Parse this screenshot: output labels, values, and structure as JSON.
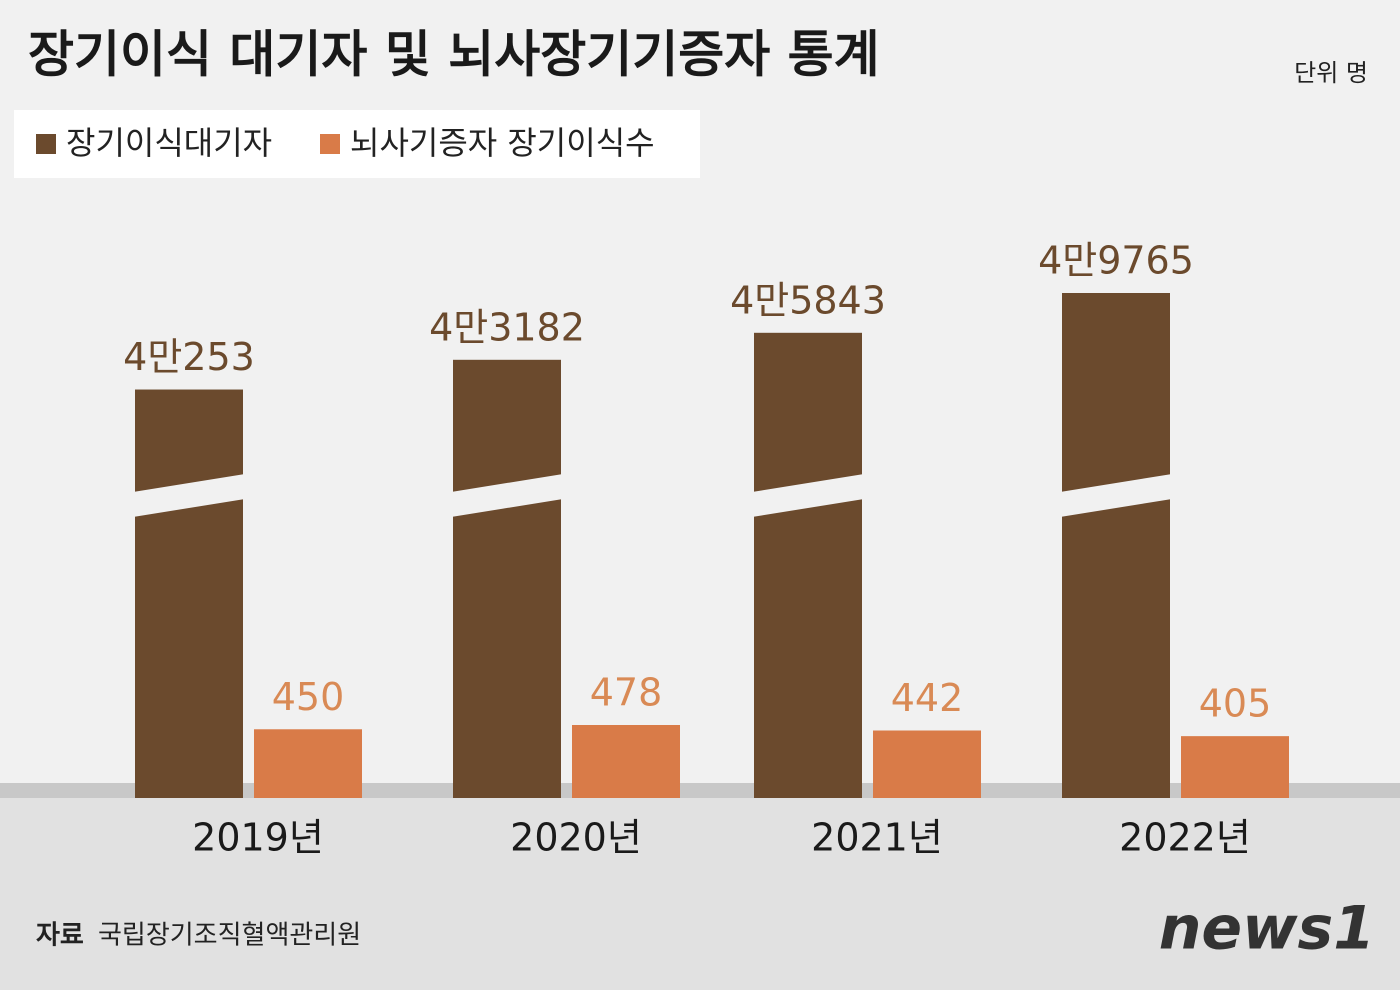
{
  "chart_data": {
    "type": "bar",
    "title": "장기이식 대기자 및 뇌사장기기증자 통계",
    "unit": "단위 명",
    "categories": [
      "2019년",
      "2020년",
      "2021년",
      "2022년"
    ],
    "series": [
      {
        "name": "장기이식대기자",
        "color": "#6b4a2d",
        "values": [
          40253,
          43182,
          45843,
          49765
        ],
        "value_labels": [
          "4만253",
          "4만3182",
          "4만5843",
          "4만9765"
        ]
      },
      {
        "name": "뇌사기증자 장기이식수",
        "color": "#d97b48",
        "values": [
          450,
          478,
          442,
          405
        ]
      }
    ],
    "source_label": "자료",
    "source": "국립장기조직혈액관리원",
    "logo": "news1"
  }
}
